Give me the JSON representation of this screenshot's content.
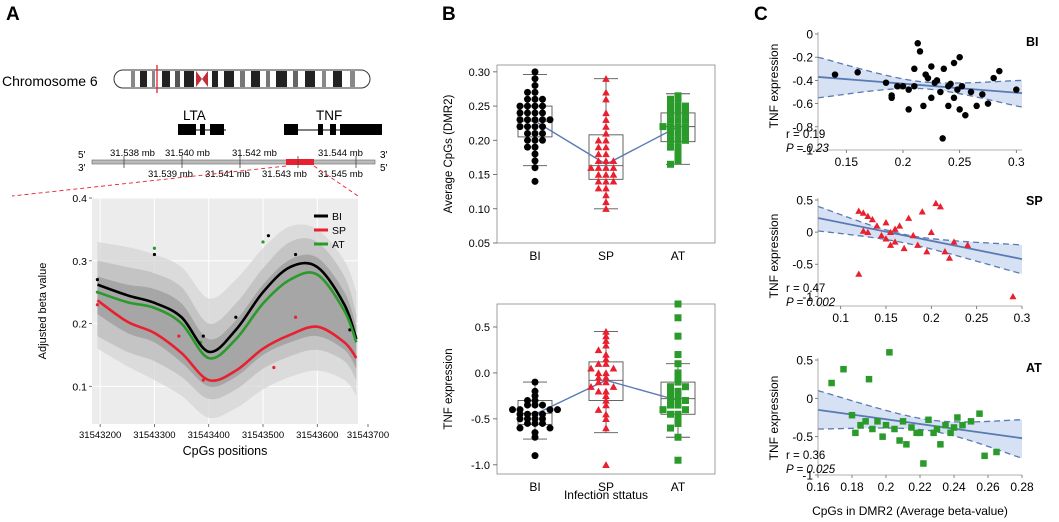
{
  "panels": {
    "A": "A",
    "B": "B",
    "C": "C"
  },
  "colors": {
    "BI": "#000000",
    "SP": "#e8202f",
    "AT": "#2a9a2a",
    "fit_line": "#5a7ab5",
    "ci_fill": "#d6e2f3",
    "ci_dash": "#5a7ab5",
    "box_line": "#555555",
    "band_dark": "#9c9c9c",
    "band_mid": "#bcbcbc",
    "band_light": "#d6d6d6",
    "panel_bg": "#ececec"
  },
  "chart_data": [
    {
      "id": "A",
      "type": "line",
      "title": "",
      "chromosome_label": "Chromosome 6",
      "genes": [
        "LTA",
        "TNF"
      ],
      "strand_left_top": "5'",
      "strand_left_bottom": "3'",
      "strand_right_top": "3'",
      "strand_right_bottom": "5'",
      "scale_top": [
        "31.538 mb",
        "31.540 mb",
        "31.542 mb",
        "31.544 mb"
      ],
      "scale_bottom": [
        "31.539 mb",
        "31.541 mb",
        "31.543 mb",
        "31.545 mb"
      ],
      "xlabel": "CpGs positions",
      "ylabel": "Adjusted beta value",
      "xlim": [
        31543185,
        31543675
      ],
      "ylim": [
        0.04,
        0.4
      ],
      "xticks": [
        31543200,
        31543300,
        31543400,
        31543500,
        31543600,
        31543700
      ],
      "xtick_labels": [
        "31543200",
        "31543300",
        "31543400",
        "31543500",
        "31543600",
        "31543700"
      ],
      "yticks": [
        0.1,
        0.2,
        0.3,
        0.4
      ],
      "ytick_labels": [
        "0.1",
        "0.2",
        "0.3",
        "0.4"
      ],
      "legend": [
        "BI",
        "SP",
        "AT"
      ],
      "x": [
        31543195,
        31543250,
        31543300,
        31543350,
        31543400,
        31543450,
        31543500,
        31543550,
        31543600,
        31543650,
        31543672
      ],
      "series": [
        {
          "name": "BI",
          "values": [
            0.262,
            0.245,
            0.233,
            0.21,
            0.155,
            0.19,
            0.25,
            0.29,
            0.29,
            0.23,
            0.175
          ]
        },
        {
          "name": "SP",
          "values": [
            0.237,
            0.203,
            0.185,
            0.153,
            0.11,
            0.125,
            0.16,
            0.182,
            0.195,
            0.17,
            0.145
          ]
        },
        {
          "name": "AT",
          "values": [
            0.25,
            0.234,
            0.225,
            0.2,
            0.145,
            0.175,
            0.232,
            0.27,
            0.278,
            0.22,
            0.17
          ]
        }
      ],
      "points": [
        {
          "group": "BI",
          "x": 31543195,
          "y": 0.27
        },
        {
          "group": "BI",
          "x": 31543300,
          "y": 0.31
        },
        {
          "group": "BI",
          "x": 31543390,
          "y": 0.18
        },
        {
          "group": "BI",
          "x": 31543450,
          "y": 0.21
        },
        {
          "group": "BI",
          "x": 31543510,
          "y": 0.34
        },
        {
          "group": "BI",
          "x": 31543560,
          "y": 0.31
        },
        {
          "group": "BI",
          "x": 31543660,
          "y": 0.19
        },
        {
          "group": "SP",
          "x": 31543195,
          "y": 0.23
        },
        {
          "group": "SP",
          "x": 31543345,
          "y": 0.18
        },
        {
          "group": "SP",
          "x": 31543390,
          "y": 0.11
        },
        {
          "group": "SP",
          "x": 31543520,
          "y": 0.13
        },
        {
          "group": "SP",
          "x": 31543560,
          "y": 0.21
        },
        {
          "group": "AT",
          "x": 31543195,
          "y": 0.25
        },
        {
          "group": "AT",
          "x": 31543300,
          "y": 0.32
        },
        {
          "group": "AT",
          "x": 31543385,
          "y": 0.17
        },
        {
          "group": "AT",
          "x": 31543500,
          "y": 0.33
        },
        {
          "group": "AT",
          "x": 31543670,
          "y": 0.18
        }
      ],
      "bands": [
        {
          "level": "light",
          "upper": [
            0.33,
            0.322,
            0.31,
            0.29,
            0.24,
            0.27,
            0.32,
            0.355,
            0.35,
            0.3,
            0.25
          ],
          "lower": [
            0.16,
            0.132,
            0.11,
            0.085,
            0.05,
            0.065,
            0.095,
            0.115,
            0.125,
            0.11,
            0.085
          ]
        },
        {
          "level": "mid",
          "upper": [
            0.3,
            0.29,
            0.28,
            0.258,
            0.2,
            0.232,
            0.288,
            0.33,
            0.33,
            0.275,
            0.215
          ],
          "lower": [
            0.18,
            0.155,
            0.14,
            0.115,
            0.08,
            0.095,
            0.128,
            0.148,
            0.158,
            0.14,
            0.11
          ]
        },
        {
          "level": "dark",
          "upper": [
            0.275,
            0.262,
            0.255,
            0.232,
            0.175,
            0.205,
            0.262,
            0.302,
            0.305,
            0.25,
            0.195
          ],
          "lower": [
            0.215,
            0.185,
            0.17,
            0.138,
            0.1,
            0.115,
            0.15,
            0.17,
            0.18,
            0.158,
            0.128
          ]
        }
      ]
    },
    {
      "id": "B1",
      "type": "scatter",
      "title": "",
      "xlabel": "",
      "ylabel": "Average CpGs (DMR2)",
      "categories": [
        "BI",
        "SP",
        "AT"
      ],
      "ylim": [
        0.05,
        0.31
      ],
      "yticks": [
        0.05,
        0.1,
        0.15,
        0.2,
        0.25,
        0.3
      ],
      "ytick_labels": [
        "0.05",
        "0.10",
        "0.15",
        "0.20",
        "0.25",
        "0.30"
      ],
      "boxes": [
        {
          "name": "BI",
          "min": 0.163,
          "q1": 0.205,
          "median": 0.228,
          "q3": 0.25,
          "max": 0.296
        },
        {
          "name": "SP",
          "min": 0.1,
          "q1": 0.143,
          "median": 0.163,
          "q3": 0.208,
          "max": 0.29
        },
        {
          "name": "AT",
          "min": 0.165,
          "q1": 0.198,
          "median": 0.22,
          "q3": 0.24,
          "max": 0.268
        }
      ],
      "means": [
        0.228,
        0.165,
        0.22
      ],
      "series": [
        {
          "name": "BI",
          "values": [
            0.3,
            0.29,
            0.28,
            0.27,
            0.27,
            0.26,
            0.26,
            0.26,
            0.25,
            0.25,
            0.25,
            0.25,
            0.24,
            0.24,
            0.24,
            0.24,
            0.23,
            0.23,
            0.23,
            0.23,
            0.23,
            0.22,
            0.22,
            0.22,
            0.22,
            0.21,
            0.21,
            0.21,
            0.2,
            0.2,
            0.2,
            0.19,
            0.19,
            0.18,
            0.17,
            0.16,
            0.14
          ]
        },
        {
          "name": "SP",
          "values": [
            0.29,
            0.27,
            0.26,
            0.24,
            0.23,
            0.22,
            0.21,
            0.2,
            0.2,
            0.19,
            0.19,
            0.18,
            0.18,
            0.17,
            0.17,
            0.17,
            0.16,
            0.16,
            0.16,
            0.16,
            0.15,
            0.15,
            0.15,
            0.14,
            0.14,
            0.14,
            0.13,
            0.13,
            0.12,
            0.11,
            0.1
          ]
        },
        {
          "name": "AT",
          "values": [
            0.265,
            0.26,
            0.26,
            0.25,
            0.25,
            0.25,
            0.24,
            0.24,
            0.24,
            0.23,
            0.23,
            0.23,
            0.22,
            0.22,
            0.22,
            0.22,
            0.21,
            0.21,
            0.21,
            0.2,
            0.2,
            0.2,
            0.19,
            0.19,
            0.18,
            0.17,
            0.165
          ]
        }
      ]
    },
    {
      "id": "B2",
      "type": "scatter",
      "title": "",
      "xlabel": "Infection sttatus",
      "ylabel": "TNF expression",
      "categories": [
        "BI",
        "SP",
        "AT"
      ],
      "ylim": [
        -1.1,
        0.75
      ],
      "yticks": [
        -1.0,
        -0.5,
        0.0,
        0.5
      ],
      "ytick_labels": [
        "-1.0",
        "-0.5",
        "0.0",
        "0.5"
      ],
      "boxes": [
        {
          "name": "BI",
          "min": -0.72,
          "q1": -0.56,
          "median": -0.44,
          "q3": -0.3,
          "max": -0.1
        },
        {
          "name": "SP",
          "min": -0.65,
          "q1": -0.3,
          "median": -0.08,
          "q3": 0.12,
          "max": 0.45
        },
        {
          "name": "AT",
          "min": -0.7,
          "q1": -0.45,
          "median": -0.28,
          "q3": -0.1,
          "max": 0.1
        }
      ],
      "means": [
        -0.45,
        -0.08,
        -0.3
      ],
      "series": [
        {
          "name": "BI",
          "values": [
            -0.1,
            -0.2,
            -0.25,
            -0.3,
            -0.3,
            -0.35,
            -0.35,
            -0.35,
            -0.4,
            -0.4,
            -0.4,
            -0.4,
            -0.45,
            -0.45,
            -0.45,
            -0.45,
            -0.5,
            -0.5,
            -0.5,
            -0.5,
            -0.55,
            -0.55,
            -0.55,
            -0.6,
            -0.6,
            -0.65,
            -0.7,
            -0.9
          ]
        },
        {
          "name": "SP",
          "values": [
            0.45,
            0.4,
            0.35,
            0.3,
            0.25,
            0.2,
            0.15,
            0.1,
            0.1,
            0.05,
            0.05,
            0.0,
            0.0,
            -0.05,
            -0.05,
            -0.1,
            -0.1,
            -0.15,
            -0.15,
            -0.2,
            -0.2,
            -0.25,
            -0.3,
            -0.35,
            -0.4,
            -0.45,
            -0.5,
            -0.6,
            -1.0
          ]
        },
        {
          "name": "AT",
          "values": [
            0.75,
            0.6,
            0.4,
            0.2,
            0.1,
            0.0,
            -0.05,
            -0.1,
            -0.15,
            -0.15,
            -0.2,
            -0.2,
            -0.25,
            -0.25,
            -0.3,
            -0.3,
            -0.3,
            -0.35,
            -0.35,
            -0.4,
            -0.4,
            -0.45,
            -0.45,
            -0.5,
            -0.55,
            -0.6,
            -0.7,
            -0.95
          ]
        }
      ]
    },
    {
      "id": "C1",
      "type": "scatter",
      "title": "BI",
      "xlabel": "",
      "ylabel": "TNF expression",
      "xlim": [
        0.125,
        0.305
      ],
      "ylim": [
        -1.0,
        0.0
      ],
      "xticks": [
        0.15,
        0.2,
        0.25,
        0.3
      ],
      "xtick_labels": [
        "0.15",
        "0.2",
        "0.25",
        "0.3"
      ],
      "yticks": [
        0.0,
        -0.2,
        -0.4,
        -0.6,
        -0.8,
        -1.0
      ],
      "ytick_labels": [
        "0",
        "-0.2",
        "-0.4",
        "-0.6",
        "-0.8",
        "-1"
      ],
      "annotation_r": "r = 0.19",
      "annotation_p": "P  = 0.23",
      "fit": [
        [
          0.125,
          -0.37
        ],
        [
          0.305,
          -0.51
        ]
      ],
      "ci_upper": [
        [
          0.125,
          -0.2
        ],
        [
          0.215,
          -0.41
        ],
        [
          0.305,
          -0.4
        ]
      ],
      "ci_lower": [
        [
          0.125,
          -0.55
        ],
        [
          0.215,
          -0.47
        ],
        [
          0.305,
          -0.63
        ]
      ],
      "x": [
        0.14,
        0.16,
        0.185,
        0.19,
        0.19,
        0.195,
        0.2,
        0.205,
        0.205,
        0.21,
        0.21,
        0.213,
        0.215,
        0.218,
        0.22,
        0.222,
        0.225,
        0.225,
        0.228,
        0.23,
        0.233,
        0.235,
        0.236,
        0.24,
        0.24,
        0.242,
        0.245,
        0.245,
        0.248,
        0.25,
        0.25,
        0.252,
        0.255,
        0.26,
        0.265,
        0.27,
        0.275,
        0.28,
        0.285,
        0.3
      ],
      "y": [
        -0.35,
        -0.33,
        -0.42,
        -0.53,
        -0.55,
        -0.45,
        -0.45,
        -0.65,
        -0.48,
        -0.45,
        -0.3,
        -0.08,
        -0.15,
        -0.62,
        -0.35,
        -0.38,
        -0.55,
        -0.28,
        -0.42,
        -0.4,
        -0.5,
        -0.9,
        -0.3,
        -0.45,
        -0.62,
        -0.43,
        -0.25,
        -0.55,
        -0.48,
        -0.2,
        -0.65,
        -0.45,
        -0.7,
        -0.5,
        -0.62,
        -0.52,
        -0.6,
        -0.38,
        -0.32,
        -0.48
      ]
    },
    {
      "id": "C2",
      "type": "scatter",
      "title": "SP",
      "xlabel": "",
      "ylabel": "TNF expression",
      "xlim": [
        0.075,
        0.3
      ],
      "ylim": [
        -1.15,
        0.5
      ],
      "xticks": [
        0.1,
        0.15,
        0.2,
        0.25,
        0.3
      ],
      "xtick_labels": [
        "0.1",
        "0.15",
        "0.2",
        "0.25",
        "0.3"
      ],
      "yticks": [
        0.5,
        0.0,
        -0.5,
        -1.0
      ],
      "ytick_labels": [
        "0.5",
        "0",
        "-0.5",
        "-1"
      ],
      "annotation_r": "r = 0.47",
      "annotation_p": "P = 0.002",
      "fit": [
        [
          0.075,
          0.22
        ],
        [
          0.3,
          -0.42
        ]
      ],
      "ci_upper": [
        [
          0.075,
          0.4
        ],
        [
          0.175,
          -0.05
        ],
        [
          0.3,
          -0.2
        ]
      ],
      "ci_lower": [
        [
          0.075,
          0.02
        ],
        [
          0.175,
          -0.18
        ],
        [
          0.3,
          -0.65
        ]
      ],
      "x": [
        0.12,
        0.12,
        0.125,
        0.125,
        0.13,
        0.13,
        0.135,
        0.14,
        0.145,
        0.15,
        0.15,
        0.155,
        0.155,
        0.16,
        0.16,
        0.165,
        0.17,
        0.175,
        0.18,
        0.185,
        0.19,
        0.195,
        0.2,
        0.205,
        0.21,
        0.215,
        0.22,
        0.225,
        0.24,
        0.29
      ],
      "y": [
        0.33,
        -0.65,
        0.3,
        0.02,
        0.25,
        0.0,
        0.2,
        0.1,
        -0.05,
        0.15,
        -0.1,
        0.0,
        -0.2,
        0.05,
        -0.15,
        0.1,
        -0.25,
        0.22,
        -0.05,
        -0.2,
        0.32,
        -0.3,
        0.0,
        0.45,
        0.4,
        -0.3,
        -0.4,
        -0.15,
        -0.2,
        -1.0
      ]
    },
    {
      "id": "C3",
      "type": "scatter",
      "title": "AT",
      "xlabel": "CpGs in DMR2 (Average beta-value)",
      "ylabel": "TNF expression",
      "xlim": [
        0.16,
        0.28
      ],
      "ylim": [
        -1.0,
        0.5
      ],
      "xticks": [
        0.16,
        0.18,
        0.2,
        0.22,
        0.24,
        0.26,
        0.28
      ],
      "xtick_labels": [
        "0.16",
        "0.18",
        "0.2",
        "0.22",
        "0.24",
        "0.26",
        "0.28"
      ],
      "yticks": [
        0.5,
        0.0,
        -0.5,
        -1.0
      ],
      "ytick_labels": [
        "0.5",
        "0",
        "-0.5",
        "-1"
      ],
      "annotation_r": "r = 0.36",
      "annotation_p": "P = 0.025",
      "fit": [
        [
          0.16,
          -0.15
        ],
        [
          0.28,
          -0.52
        ]
      ],
      "ci_upper": [
        [
          0.16,
          0.1
        ],
        [
          0.225,
          -0.28
        ],
        [
          0.28,
          -0.28
        ]
      ],
      "ci_lower": [
        [
          0.16,
          -0.4
        ],
        [
          0.225,
          -0.42
        ],
        [
          0.28,
          -0.78
        ]
      ],
      "x": [
        0.168,
        0.175,
        0.18,
        0.182,
        0.185,
        0.188,
        0.19,
        0.192,
        0.195,
        0.198,
        0.2,
        0.202,
        0.205,
        0.208,
        0.21,
        0.212,
        0.215,
        0.218,
        0.22,
        0.222,
        0.225,
        0.228,
        0.23,
        0.232,
        0.235,
        0.238,
        0.24,
        0.242,
        0.245,
        0.25,
        0.255,
        0.258,
        0.265
      ],
      "y": [
        0.2,
        0.38,
        -0.22,
        -0.45,
        -0.35,
        -0.3,
        0.25,
        -0.4,
        -0.3,
        -0.5,
        -0.35,
        0.6,
        -0.4,
        -0.55,
        -0.3,
        -0.6,
        -0.38,
        -0.45,
        -0.45,
        -0.85,
        -0.28,
        -0.45,
        -0.4,
        -0.6,
        -0.35,
        -0.45,
        -0.38,
        -0.25,
        -0.35,
        -0.3,
        -0.2,
        -0.75,
        -0.7
      ]
    }
  ]
}
